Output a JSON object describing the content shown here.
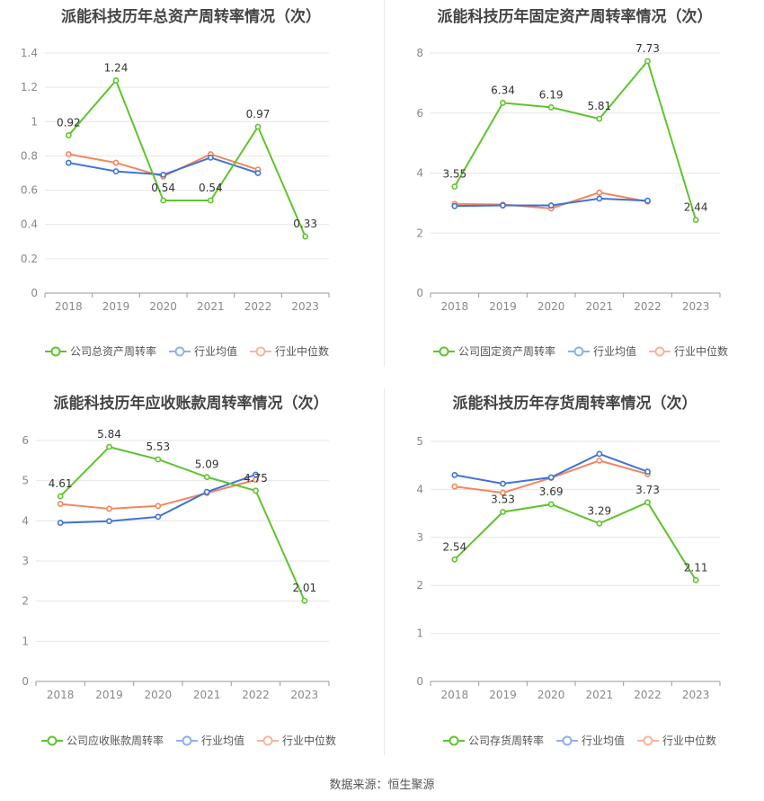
{
  "source": "数据来源：恒生聚源",
  "legend_common": {
    "avg": "行业均值",
    "median": "行业中位数"
  },
  "colors": {
    "company": "#5ec42f",
    "avg": "#3f73d6",
    "median": "#f2865e",
    "grid": "#e6e6e6",
    "axis": "#999999"
  },
  "chart_data": [
    {
      "type": "line",
      "title": "派能科技历年总资产周转率情况（次）",
      "categories": [
        "2018",
        "2019",
        "2020",
        "2021",
        "2022",
        "2023"
      ],
      "ylim": [
        0,
        1.4
      ],
      "yticks": [
        "0",
        "0.2",
        "0.4",
        "0.6",
        "0.8",
        "1",
        "1.2",
        "1.4"
      ],
      "series": [
        {
          "name": "公司总资产周转率",
          "values": [
            0.92,
            1.24,
            0.54,
            0.54,
            0.97,
            0.33
          ],
          "labels": [
            "0.92",
            "1.24",
            "0.54",
            "0.54",
            "0.97",
            "0.33"
          ]
        },
        {
          "name": "行业均值",
          "values": [
            0.76,
            0.71,
            0.69,
            0.79,
            0.7,
            null
          ]
        },
        {
          "name": "行业中位数",
          "values": [
            0.81,
            0.76,
            0.68,
            0.81,
            0.72,
            null
          ]
        }
      ]
    },
    {
      "type": "line",
      "title": "派能科技历年固定资产周转率情况（次）",
      "categories": [
        "2018",
        "2019",
        "2020",
        "2021",
        "2022",
        "2023"
      ],
      "ylim": [
        0,
        8
      ],
      "yticks": [
        "0",
        "2",
        "4",
        "6",
        "8"
      ],
      "series": [
        {
          "name": "公司固定资产周转率",
          "values": [
            3.55,
            6.34,
            6.19,
            5.81,
            7.73,
            2.44
          ],
          "labels": [
            "3.55",
            "6.34",
            "6.19",
            "5.81",
            "7.73",
            "2.44"
          ]
        },
        {
          "name": "行业均值",
          "values": [
            2.9,
            2.92,
            2.92,
            3.15,
            3.08,
            null
          ]
        },
        {
          "name": "行业中位数",
          "values": [
            2.97,
            2.95,
            2.82,
            3.35,
            3.05,
            null
          ]
        }
      ]
    },
    {
      "type": "line",
      "title": "派能科技历年应收账款周转率情况（次）",
      "categories": [
        "2018",
        "2019",
        "2020",
        "2021",
        "2022",
        "2023"
      ],
      "ylim": [
        0,
        6
      ],
      "yticks": [
        "0",
        "1",
        "2",
        "3",
        "4",
        "5",
        "6"
      ],
      "series": [
        {
          "name": "公司应收账款周转率",
          "values": [
            4.61,
            5.84,
            5.53,
            5.09,
            4.75,
            2.01
          ],
          "labels": [
            "4.61",
            "5.84",
            "5.53",
            "5.09",
            "4.75",
            "2.01"
          ]
        },
        {
          "name": "行业均值",
          "values": [
            3.95,
            3.99,
            4.1,
            4.72,
            5.15,
            null
          ]
        },
        {
          "name": "行业中位数",
          "values": [
            4.42,
            4.3,
            4.37,
            4.69,
            5.02,
            null
          ]
        }
      ]
    },
    {
      "type": "line",
      "title": "派能科技历年存货周转率情况（次）",
      "categories": [
        "2018",
        "2019",
        "2020",
        "2021",
        "2022",
        "2023"
      ],
      "ylim": [
        0,
        5
      ],
      "yticks": [
        "0",
        "1",
        "2",
        "3",
        "4",
        "5"
      ],
      "series": [
        {
          "name": "公司存货周转率",
          "values": [
            2.54,
            3.53,
            3.69,
            3.29,
            3.73,
            2.11
          ],
          "labels": [
            "2.54",
            "3.53",
            "3.69",
            "3.29",
            "3.73",
            "2.11"
          ]
        },
        {
          "name": "行业均值",
          "values": [
            4.3,
            4.12,
            4.25,
            4.74,
            4.37,
            null
          ]
        },
        {
          "name": "行业中位数",
          "values": [
            4.06,
            3.93,
            4.24,
            4.6,
            4.32,
            null
          ]
        }
      ]
    }
  ]
}
